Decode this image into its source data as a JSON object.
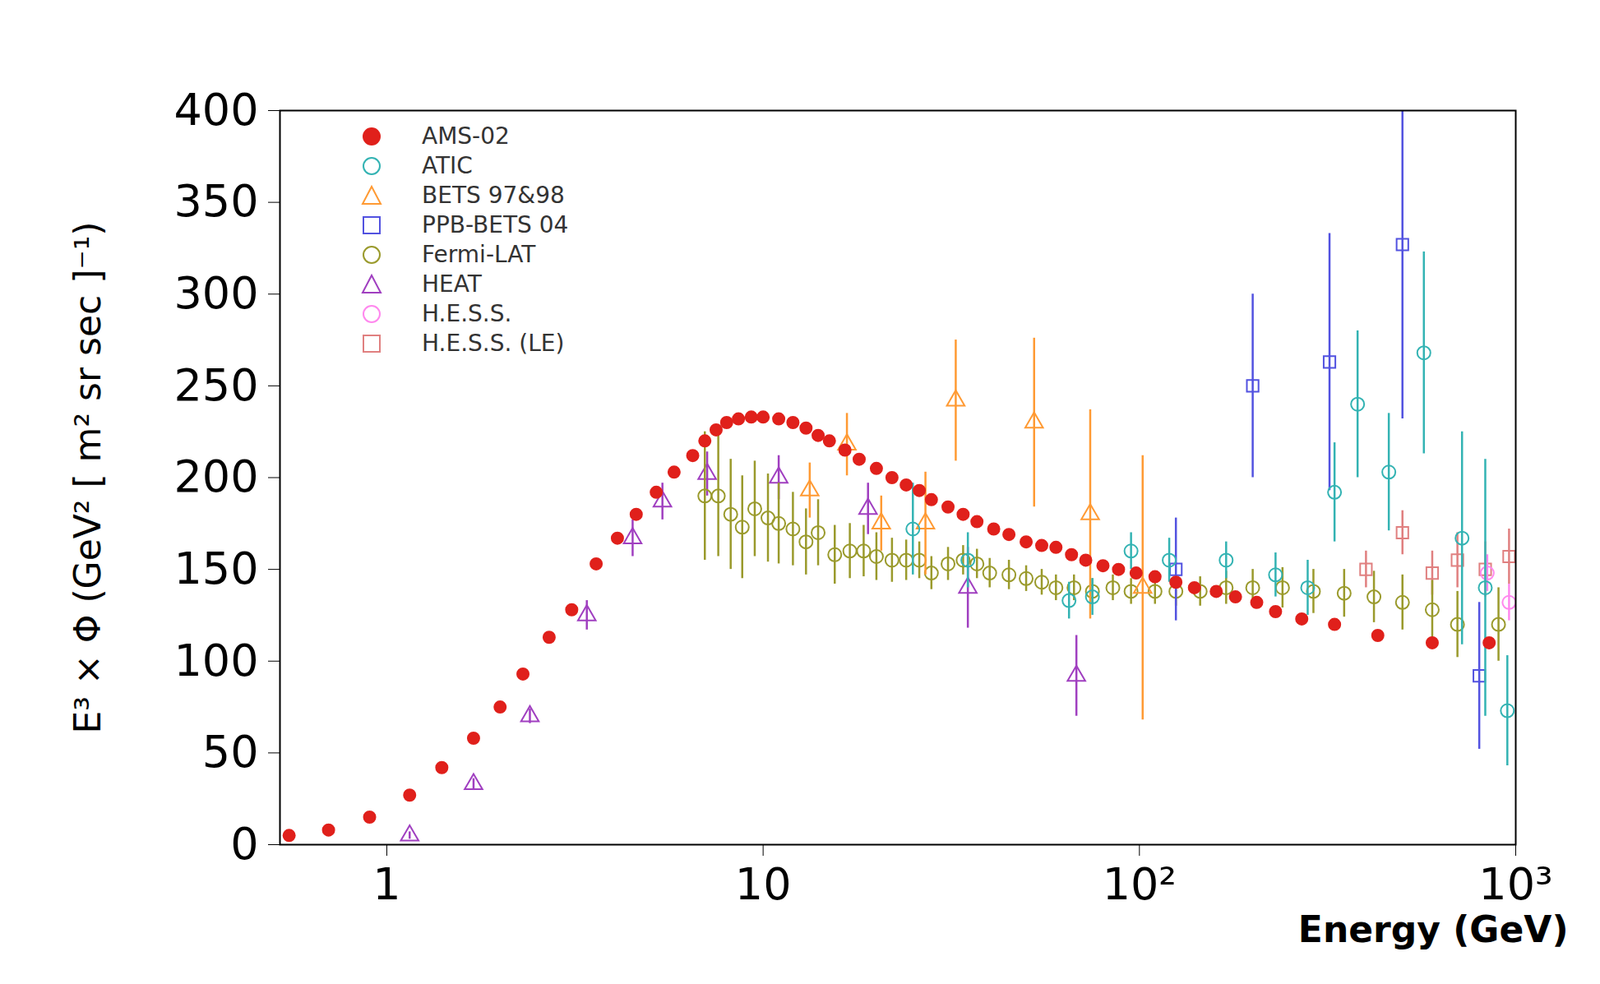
{
  "chart_data": {
    "type": "scatter",
    "x_label": "Energy (GeV)",
    "y_label": "E³ × Φ (GeV² [ m² sr sec ]⁻¹)",
    "log": "x",
    "grid": false,
    "legend": "top-left",
    "xlim": [
      0.52,
      1000
    ],
    "xticks": [
      1,
      10,
      {
        "value": 100,
        "label": "10²"
      },
      {
        "value": 1000,
        "label": "10³"
      }
    ],
    "ylim": [
      0,
      400
    ],
    "yticks": [
      0,
      50,
      100,
      150,
      200,
      250,
      300,
      350,
      400
    ],
    "series": [
      {
        "name": "AMS-02",
        "color": "#e0201b",
        "marker": "circle",
        "x": [
          0.55,
          0.7,
          0.9,
          1.15,
          1.4,
          1.7,
          2.0,
          2.3,
          2.7,
          3.1,
          3.6,
          4.1,
          4.6,
          5.2,
          5.8,
          6.5,
          7.0,
          7.5,
          8.0,
          8.6,
          9.3,
          10,
          11,
          12,
          13,
          14,
          15,
          16.5,
          18,
          20,
          22,
          24,
          26,
          28,
          31,
          34,
          37,
          41,
          45,
          50,
          55,
          60,
          66,
          72,
          80,
          88,
          98,
          110,
          125,
          140,
          160,
          180,
          205,
          230,
          270,
          330,
          430,
          600,
          850
        ],
        "values": [
          5,
          8,
          15,
          27,
          42,
          58,
          75,
          93,
          113,
          128,
          153,
          167,
          180,
          192,
          203,
          212,
          220,
          226,
          230,
          232,
          233,
          233,
          232,
          230,
          227,
          223,
          220,
          215,
          210,
          205,
          200,
          196,
          193,
          188,
          184,
          180,
          176,
          172,
          169,
          165,
          163,
          162,
          158,
          155,
          152,
          150,
          148,
          146,
          143,
          140,
          138,
          135,
          132,
          127,
          123,
          120,
          114,
          110,
          110
        ]
      },
      {
        "name": "ATIC",
        "color": "#33b3b3",
        "marker": "circle-open",
        "x": [
          25,
          35,
          65,
          75,
          95,
          120,
          170,
          230,
          280,
          330,
          380,
          460,
          570,
          720,
          830,
          950
        ],
        "values": [
          172,
          155,
          133,
          135,
          160,
          155,
          155,
          147,
          140,
          192,
          240,
          203,
          268,
          167,
          140,
          73
        ],
        "errors": [
          25,
          15,
          10,
          10,
          10,
          12,
          10,
          12,
          15,
          27,
          40,
          32,
          55,
          58,
          70,
          30
        ]
      },
      {
        "name": "BETS 97&98",
        "color": "#ff9a33",
        "marker": "triangle-open",
        "x": [
          13.3,
          16.7,
          20.6,
          27,
          32.5,
          52.5,
          74,
          102
        ],
        "values": [
          193,
          218,
          175,
          175,
          242,
          230,
          180,
          140
        ],
        "errors": [
          15,
          17,
          15,
          28,
          33,
          46,
          57,
          72
        ]
      },
      {
        "name": "PPB-BETS 04",
        "color": "#5252e0",
        "marker": "square-open",
        "x": [
          125,
          200,
          320,
          500,
          800
        ],
        "values": [
          150,
          250,
          263,
          327,
          92
        ],
        "errors": [
          28,
          50,
          70,
          95,
          40
        ]
      },
      {
        "name": "Fermi-LAT",
        "color": "#9a9a2c",
        "marker": "circle-open",
        "x": [
          7,
          7.6,
          8.2,
          8.8,
          9.5,
          10.3,
          11,
          12,
          13,
          14,
          15.5,
          17,
          18.5,
          20,
          22,
          24,
          26,
          28,
          31,
          34,
          37,
          40,
          45,
          50,
          55,
          60,
          67,
          75,
          85,
          95,
          110,
          125,
          145,
          170,
          200,
          240,
          290,
          350,
          420,
          500,
          600,
          700,
          900
        ],
        "values": [
          190,
          190,
          180,
          173,
          183,
          178,
          175,
          172,
          165,
          170,
          158,
          160,
          160,
          157,
          155,
          155,
          155,
          148,
          153,
          155,
          153,
          148,
          147,
          145,
          143,
          140,
          140,
          138,
          140,
          138,
          138,
          138,
          138,
          140,
          140,
          140,
          138,
          137,
          135,
          132,
          128,
          120,
          120
        ],
        "errors": [
          35,
          33,
          30,
          28,
          26,
          24,
          22,
          20,
          18,
          18,
          16,
          15,
          14,
          13,
          12,
          11,
          10,
          9,
          9,
          8,
          8,
          8,
          8,
          7,
          7,
          7,
          7,
          7,
          7,
          7,
          7,
          8,
          8,
          9,
          10,
          11,
          12,
          13,
          14,
          15,
          16,
          18,
          20
        ]
      },
      {
        "name": "HEAT",
        "color": "#a03fc0",
        "marker": "triangle-open",
        "x": [
          1.15,
          1.7,
          2.4,
          3.4,
          4.5,
          5.4,
          7.1,
          11,
          19,
          35,
          68
        ],
        "values": [
          5,
          33,
          70,
          125,
          167,
          187,
          202,
          200,
          183,
          140,
          92
        ],
        "errors": [
          2,
          3,
          4,
          8,
          10,
          10,
          12,
          12,
          14,
          22,
          22
        ]
      },
      {
        "name": "H.E.S.S.",
        "color": "#ff88ee",
        "marker": "circle-open",
        "x": [
          840,
          960
        ],
        "values": [
          148,
          132
        ],
        "errors": [
          10,
          10
        ]
      },
      {
        "name": "H.E.S.S. (LE)",
        "color": "#e08080",
        "marker": "square-open",
        "x": [
          400,
          500,
          600,
          700,
          830,
          960
        ],
        "values": [
          150,
          170,
          148,
          155,
          150,
          157
        ],
        "errors": [
          10,
          12,
          12,
          15,
          15,
          15
        ]
      }
    ]
  }
}
